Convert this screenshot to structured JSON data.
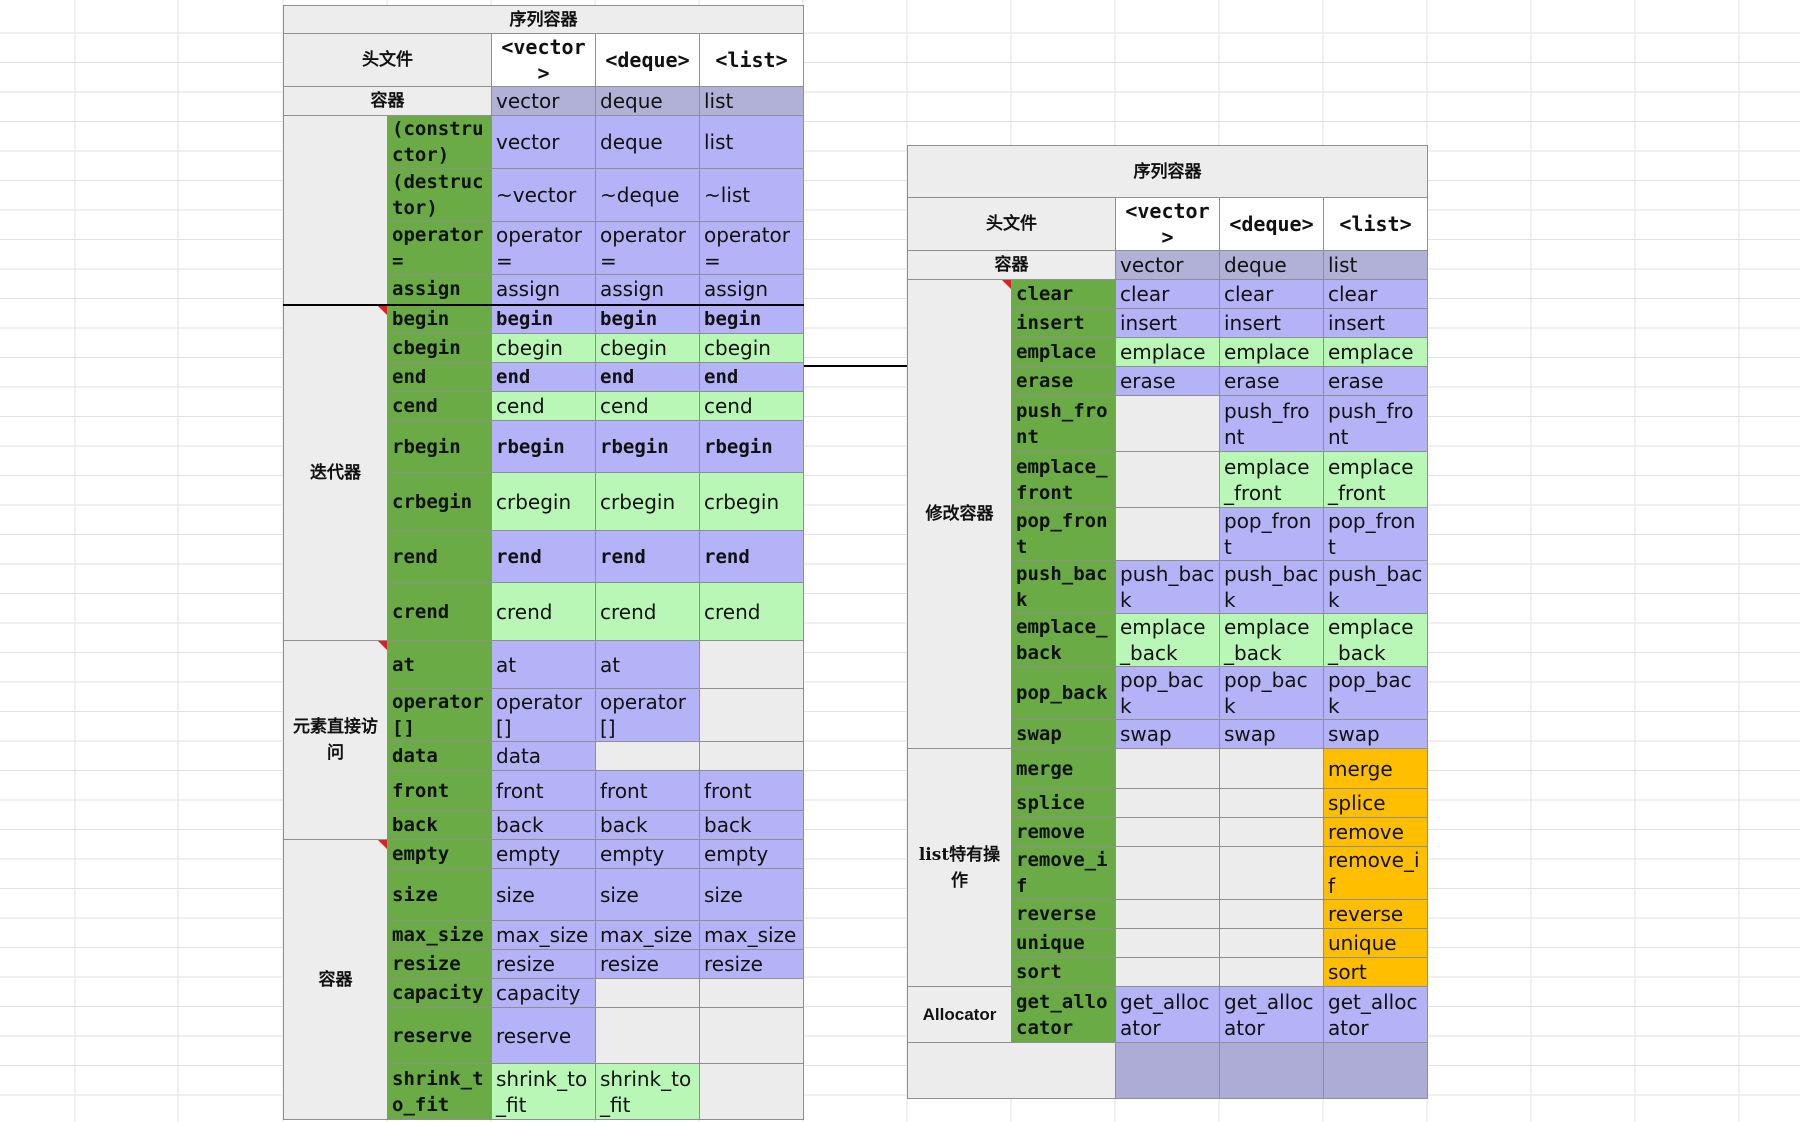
{
  "colors": {
    "function_cell": "#6aab46",
    "value_blue": "#b4b3f7",
    "value_green": "#b9f7b7",
    "value_orange": "#ffbe00",
    "empty_cell": "#ececec",
    "container_row": "#b1b1d8",
    "label_cell": "#ededed"
  },
  "left_table": {
    "title": "序列容器",
    "header_row_label": "头文件",
    "headers": [
      "<vector>",
      "<deque>",
      "<list>"
    ],
    "container_row_label": "容器",
    "containers": [
      "vector",
      "deque",
      "list"
    ],
    "groups": [
      {
        "label": "",
        "marked": false,
        "rows": [
          {
            "fn": "(constructor)",
            "values": [
              "vector",
              "deque",
              "list"
            ],
            "colors": [
              "b",
              "b",
              "b"
            ],
            "mono": false
          },
          {
            "fn": "(destructor)",
            "values": [
              "~vector",
              "~deque",
              "~list"
            ],
            "colors": [
              "b",
              "b",
              "b"
            ],
            "mono": false
          },
          {
            "fn": "operator=",
            "values": [
              "operator=",
              "operator=",
              "operator="
            ],
            "colors": [
              "b",
              "b",
              "b"
            ],
            "mono": false
          },
          {
            "fn": "assign",
            "values": [
              "assign",
              "assign",
              "assign"
            ],
            "colors": [
              "b",
              "b",
              "b"
            ],
            "mono": false
          }
        ]
      },
      {
        "label": "迭代器",
        "marked": true,
        "rows": [
          {
            "fn": "begin",
            "values": [
              "begin",
              "begin",
              "begin"
            ],
            "colors": [
              "b",
              "b",
              "b"
            ],
            "mono": true
          },
          {
            "fn": "cbegin",
            "values": [
              "cbegin",
              "cbegin",
              "cbegin"
            ],
            "colors": [
              "g",
              "g",
              "g"
            ],
            "mono": false
          },
          {
            "fn": "end",
            "values": [
              "end",
              "end",
              "end"
            ],
            "colors": [
              "b",
              "b",
              "b"
            ],
            "mono": true
          },
          {
            "fn": "cend",
            "values": [
              "cend",
              "cend",
              "cend"
            ],
            "colors": [
              "g",
              "g",
              "g"
            ],
            "mono": false
          },
          {
            "fn": "rbegin",
            "values": [
              "rbegin",
              "rbegin",
              "rbegin"
            ],
            "colors": [
              "b",
              "b",
              "b"
            ],
            "mono": true
          },
          {
            "fn": "crbegin",
            "values": [
              "crbegin",
              "crbegin",
              "crbegin"
            ],
            "colors": [
              "g",
              "g",
              "g"
            ],
            "mono": false
          },
          {
            "fn": "rend",
            "values": [
              "rend",
              "rend",
              "rend"
            ],
            "colors": [
              "b",
              "b",
              "b"
            ],
            "mono": true
          },
          {
            "fn": "crend",
            "values": [
              "crend",
              "crend",
              "crend"
            ],
            "colors": [
              "g",
              "g",
              "g"
            ],
            "mono": false
          }
        ]
      },
      {
        "label": "元素直接访问",
        "marked": true,
        "rows": [
          {
            "fn": "at",
            "values": [
              "at",
              "at",
              ""
            ],
            "colors": [
              "b",
              "b",
              "e"
            ],
            "mono": false
          },
          {
            "fn": "operator[]",
            "values": [
              "operator[]",
              "operator[]",
              ""
            ],
            "colors": [
              "b",
              "b",
              "e"
            ],
            "mono": false
          },
          {
            "fn": "data",
            "values": [
              "data",
              "",
              ""
            ],
            "colors": [
              "b",
              "e",
              "e"
            ],
            "mono": false
          },
          {
            "fn": "front",
            "values": [
              "front",
              "front",
              "front"
            ],
            "colors": [
              "b",
              "b",
              "b"
            ],
            "mono": false
          },
          {
            "fn": "back",
            "values": [
              "back",
              "back",
              "back"
            ],
            "colors": [
              "b",
              "b",
              "b"
            ],
            "mono": false
          }
        ]
      },
      {
        "label": "容器",
        "marked": true,
        "rows": [
          {
            "fn": "empty",
            "values": [
              "empty",
              "empty",
              "empty"
            ],
            "colors": [
              "b",
              "b",
              "b"
            ],
            "mono": false
          },
          {
            "fn": "size",
            "values": [
              "size",
              "size",
              "size"
            ],
            "colors": [
              "b",
              "b",
              "b"
            ],
            "mono": false
          },
          {
            "fn": "max_size",
            "values": [
              "max_size",
              "max_size",
              "max_size"
            ],
            "colors": [
              "b",
              "b",
              "b"
            ],
            "mono": false
          },
          {
            "fn": "resize",
            "values": [
              "resize",
              "resize",
              "resize"
            ],
            "colors": [
              "b",
              "b",
              "b"
            ],
            "mono": false
          },
          {
            "fn": "capacity",
            "values": [
              "capacity",
              "",
              ""
            ],
            "colors": [
              "b",
              "e",
              "e"
            ],
            "mono": false
          },
          {
            "fn": "reserve",
            "values": [
              "reserve",
              "",
              ""
            ],
            "colors": [
              "b",
              "e",
              "e"
            ],
            "mono": false
          },
          {
            "fn": "shrink_to_fit",
            "values": [
              "shrink_to_fit",
              "shrink_to_fit",
              ""
            ],
            "colors": [
              "g",
              "g",
              "e"
            ],
            "mono": false
          }
        ]
      }
    ]
  },
  "right_table": {
    "title": "序列容器",
    "header_row_label": "头文件",
    "headers": [
      "<vector>",
      "<deque>",
      "<list>"
    ],
    "container_row_label": "容器",
    "containers": [
      "vector",
      "deque",
      "list"
    ],
    "groups": [
      {
        "label": "修改容器",
        "marked": true,
        "rows": [
          {
            "fn": "clear",
            "values": [
              "clear",
              "clear",
              "clear"
            ],
            "colors": [
              "b",
              "b",
              "b"
            ],
            "mono": false
          },
          {
            "fn": "insert",
            "values": [
              "insert",
              "insert",
              "insert"
            ],
            "colors": [
              "b",
              "b",
              "b"
            ],
            "mono": false
          },
          {
            "fn": "emplace",
            "values": [
              "emplace",
              "emplace",
              "emplace"
            ],
            "colors": [
              "g",
              "g",
              "g"
            ],
            "mono": false
          },
          {
            "fn": "erase",
            "values": [
              "erase",
              "erase",
              "erase"
            ],
            "colors": [
              "b",
              "b",
              "b"
            ],
            "mono": false
          },
          {
            "fn": "push_front",
            "values": [
              "",
              "push_front",
              "push_front"
            ],
            "colors": [
              "e",
              "b",
              "b"
            ],
            "mono": false
          },
          {
            "fn": "emplace_front",
            "values": [
              "",
              "emplace_front",
              "emplace_front"
            ],
            "colors": [
              "e",
              "g",
              "g"
            ],
            "mono": false
          },
          {
            "fn": "pop_front",
            "values": [
              "",
              "pop_front",
              "pop_front"
            ],
            "colors": [
              "e",
              "b",
              "b"
            ],
            "mono": false
          },
          {
            "fn": "push_back",
            "values": [
              "push_back",
              "push_back",
              "push_back"
            ],
            "colors": [
              "b",
              "b",
              "b"
            ],
            "mono": false
          },
          {
            "fn": "emplace_back",
            "values": [
              "emplace_back",
              "emplace_back",
              "emplace_back"
            ],
            "colors": [
              "g",
              "g",
              "g"
            ],
            "mono": false
          },
          {
            "fn": "pop_back",
            "values": [
              "pop_back",
              "pop_back",
              "pop_back"
            ],
            "colors": [
              "b",
              "b",
              "b"
            ],
            "mono": false
          },
          {
            "fn": "swap",
            "values": [
              "swap",
              "swap",
              "swap"
            ],
            "colors": [
              "b",
              "b",
              "b"
            ],
            "mono": false
          }
        ]
      },
      {
        "label": "list特有操作",
        "marked": false,
        "rows": [
          {
            "fn": "merge",
            "values": [
              "",
              "",
              "merge"
            ],
            "colors": [
              "e",
              "e",
              "o"
            ],
            "mono": false
          },
          {
            "fn": "splice",
            "values": [
              "",
              "",
              "splice"
            ],
            "colors": [
              "e",
              "e",
              "o"
            ],
            "mono": false
          },
          {
            "fn": "remove",
            "values": [
              "",
              "",
              "remove"
            ],
            "colors": [
              "e",
              "e",
              "o"
            ],
            "mono": false
          },
          {
            "fn": "remove_if",
            "values": [
              "",
              "",
              "remove_if"
            ],
            "colors": [
              "e",
              "e",
              "o"
            ],
            "mono": false
          },
          {
            "fn": "reverse",
            "values": [
              "",
              "",
              "reverse"
            ],
            "colors": [
              "e",
              "e",
              "o"
            ],
            "mono": false
          },
          {
            "fn": "unique",
            "values": [
              "",
              "",
              "unique"
            ],
            "colors": [
              "e",
              "e",
              "o"
            ],
            "mono": false
          },
          {
            "fn": "sort",
            "values": [
              "",
              "",
              "sort"
            ],
            "colors": [
              "e",
              "e",
              "o"
            ],
            "mono": false
          }
        ]
      },
      {
        "label": "Allocator",
        "marked": false,
        "rows": [
          {
            "fn": "get_allocator",
            "values": [
              "get_allocator",
              "get_allocator",
              "get_allocator"
            ],
            "colors": [
              "b",
              "b",
              "b"
            ],
            "mono": false
          }
        ]
      }
    ]
  }
}
